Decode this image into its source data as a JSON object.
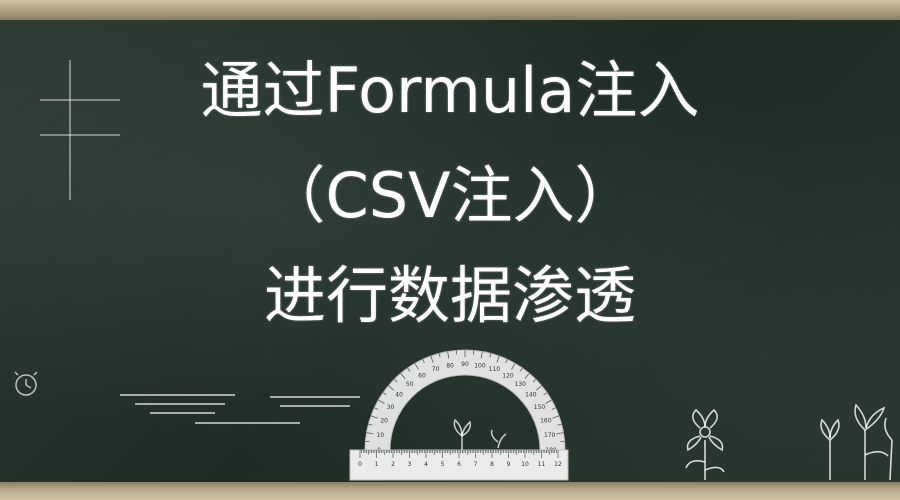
{
  "title": {
    "line1": "通过Formula注入",
    "line2": "（CSV注入）",
    "line3": "进行数据渗透"
  },
  "decorations": {
    "protractor_labels": [
      "0",
      "10",
      "20",
      "30",
      "40",
      "50",
      "60",
      "70",
      "80",
      "90",
      "100",
      "110",
      "120",
      "130",
      "140",
      "150",
      "160",
      "170",
      "180"
    ],
    "ruler_labels": [
      "0",
      "1",
      "2",
      "3",
      "4",
      "5",
      "6",
      "7",
      "8",
      "9",
      "10",
      "11",
      "12"
    ]
  },
  "colors": {
    "board": "#26342d",
    "chalk": "#ffffff",
    "frame": "#b6a988"
  }
}
